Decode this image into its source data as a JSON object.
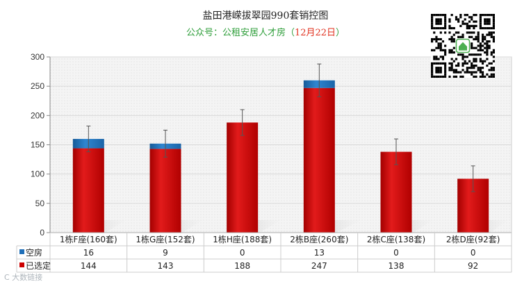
{
  "header": {
    "title": "盐田港嵘拔翠园990套销控图",
    "subtitle_prefix": "公众号：公租安居人才房（",
    "subtitle_date": "12月22日",
    "subtitle_suffix": "）"
  },
  "watermark": "C 大数链接",
  "qr_icon": "qr-code-icon",
  "colors": {
    "vacant": "#1f6fb8",
    "selected": "#cc0000",
    "grid": "#d9d9d9"
  },
  "chart_data": {
    "type": "bar",
    "stacked": true,
    "title": "盐田港嵘拔翠园990套销控图",
    "categories": [
      "1栋F座(160套)",
      "1栋G座(152套)",
      "1栋H座(188套)",
      "2栋B座(260套)",
      "2栋C座(138套)",
      "2栋D座(92套)"
    ],
    "series": [
      {
        "name": "空房",
        "values": [
          16,
          9,
          0,
          13,
          0,
          0
        ]
      },
      {
        "name": "已选定",
        "values": [
          144,
          143,
          188,
          247,
          138,
          92
        ]
      }
    ],
    "error_bars": [
      22,
      23,
      22,
      28,
      22,
      22
    ],
    "ylim": [
      0,
      300
    ],
    "yticks": [
      0,
      50,
      100,
      150,
      200,
      250,
      300
    ],
    "grid": true,
    "legend": "data-table"
  }
}
